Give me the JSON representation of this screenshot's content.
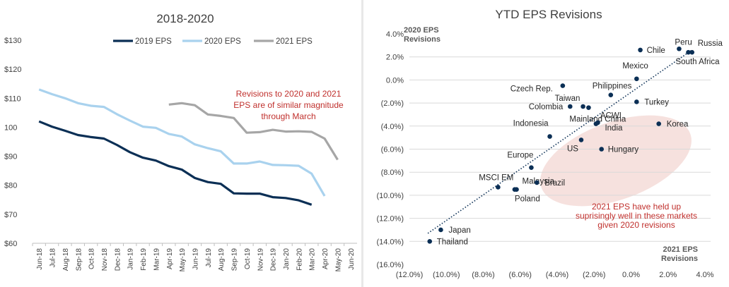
{
  "colors": {
    "eps2019": "#0b2f55",
    "eps2020": "#a9d2ee",
    "eps2021": "#a6a6a6",
    "points": "#0b2f55",
    "annotation": "#c0302d",
    "axisText": "#404040",
    "grid": "#d9d9d9",
    "ellipse": "#f4d9d6"
  },
  "chart_data": [
    {
      "type": "line",
      "title": "2018-2020",
      "xlabel": "",
      "ylabel": "",
      "ylim": [
        60,
        130
      ],
      "y_ticks": [
        60,
        70,
        80,
        90,
        100,
        110,
        120,
        130
      ],
      "y_tick_labels": [
        "$60",
        "$70",
        "$80",
        "$90",
        "100",
        "$110",
        "$120",
        "$130"
      ],
      "grid": false,
      "legend_position": "top",
      "categories": [
        "Jun-18",
        "Jul-18",
        "Aug-18",
        "Sep-18",
        "Oct-18",
        "Nov-18",
        "Dec-18",
        "Jan-19",
        "Feb-19",
        "Mar-19",
        "Apr-19",
        "May-19",
        "Jun-19",
        "Jul-19",
        "Aug-19",
        "Sep-19",
        "Oct-19",
        "Nov-19",
        "Dec-19",
        "Jan-20",
        "Feb-20",
        "Mar-20",
        "Apr-20",
        "May-20",
        "Jun-20"
      ],
      "series": [
        {
          "name": "2019 EPS",
          "values": [
            102,
            100.2,
            98.8,
            97.3,
            96.6,
            96.1,
            93.9,
            91.4,
            89.5,
            88.5,
            86.6,
            85.4,
            82.5,
            81.1,
            80.5,
            77.2,
            77.1,
            77.1,
            75.9,
            75.6,
            74.8,
            73.3,
            null,
            null,
            null
          ]
        },
        {
          "name": "2020 EPS",
          "values": [
            113,
            111.4,
            110,
            108.3,
            107.4,
            107,
            104.5,
            102.3,
            100.2,
            99.8,
            97.7,
            96.8,
            94.1,
            92.8,
            91.7,
            87.5,
            87.5,
            88.2,
            87,
            86.9,
            86.7,
            84,
            76.3,
            null,
            null
          ]
        },
        {
          "name": "2021 EPS",
          "values": [
            null,
            null,
            null,
            null,
            null,
            null,
            null,
            null,
            null,
            null,
            107.8,
            108.3,
            107.6,
            104.4,
            103.9,
            103.2,
            98.1,
            98.3,
            99.1,
            98.5,
            98.6,
            98.4,
            96.1,
            88.8,
            null
          ]
        }
      ],
      "annotations": [
        "Revisions to 2020 and 2021",
        "EPS are of similar magnitude",
        "through March"
      ]
    },
    {
      "type": "scatter",
      "title": "YTD EPS Revisions",
      "xlabel": "2021 EPS Revisions",
      "ylabel": "2020 EPS Revisions",
      "xlim": [
        -12,
        4
      ],
      "ylim": [
        -16,
        4
      ],
      "x_ticks": [
        -12,
        -10,
        -8,
        -6,
        -4,
        -2,
        0,
        2,
        4
      ],
      "x_tick_labels": [
        "(12.0%)",
        "(10.0%)",
        "(8.0%)",
        "(6.0%)",
        "(4.0%)",
        "(2.0%)",
        "0.0%",
        "2.0%",
        "4.0%"
      ],
      "y_ticks": [
        4,
        2,
        0,
        -2,
        -4,
        -6,
        -8,
        -10,
        -12,
        -14,
        -16
      ],
      "y_tick_labels": [
        "4.0%",
        "2.0%",
        "0.0%",
        "(2.0%)",
        "(4.0%)",
        "(6.0%)",
        "(8.0%)",
        "(10.0%)",
        "(12.0%)",
        "(14.0%)",
        "(16.0%)"
      ],
      "trendline": "dotted linear fit",
      "points": [
        {
          "label": "Peru",
          "x": 2.6,
          "y": 2.7
        },
        {
          "label": "Russia",
          "x": 3.3,
          "y": 2.4
        },
        {
          "label": "Chile",
          "x": 0.5,
          "y": 2.6
        },
        {
          "label": "South Africa",
          "x": 3.1,
          "y": 2.4
        },
        {
          "label": "Mexico",
          "x": 0.3,
          "y": 0.1
        },
        {
          "label": "Philippines",
          "x": -1.1,
          "y": -1.3
        },
        {
          "label": "Turkey",
          "x": 0.3,
          "y": -1.9
        },
        {
          "label": "Czech Rep.",
          "x": -3.7,
          "y": -0.5
        },
        {
          "label": "Taiwan",
          "x": -2.6,
          "y": -2.3
        },
        {
          "label": "Colombia",
          "x": -3.3,
          "y": -2.3
        },
        {
          "label": "Mainland China",
          "x": -2.3,
          "y": -2.4
        },
        {
          "label": "Korea",
          "x": 1.5,
          "y": -3.8
        },
        {
          "label": "India",
          "x": -1.8,
          "y": -3.7
        },
        {
          "label": "Indonesia",
          "x": -4.4,
          "y": -4.9
        },
        {
          "label": "ACWI",
          "x": -1.9,
          "y": -3.8
        },
        {
          "label": "US",
          "x": -2.7,
          "y": -5.2
        },
        {
          "label": "Hungary",
          "x": -1.6,
          "y": -6.0
        },
        {
          "label": "Europe",
          "x": -5.4,
          "y": -7.6
        },
        {
          "label": "MSCI EM",
          "x": -7.2,
          "y": -9.3
        },
        {
          "label": "Malaysia",
          "x": -6.2,
          "y": -9.5
        },
        {
          "label": "Brazil",
          "x": -5.1,
          "y": -8.9
        },
        {
          "label": "Poland",
          "x": -6.3,
          "y": -9.5
        },
        {
          "label": "Japan",
          "x": -10.3,
          "y": -13.0
        },
        {
          "label": "Thailand",
          "x": -10.9,
          "y": -14.0
        }
      ],
      "annotations": [
        "2021 EPS have held up",
        "suprisingly well in these markets",
        "given 2020 revisions"
      ]
    }
  ],
  "ui": {
    "left_title": "2018-2020",
    "right_title": "YTD EPS Revisions",
    "y_axis_title_line1": "2020 EPS",
    "y_axis_title_line2": "Revisions",
    "x_axis_title_line1": "2021 EPS",
    "x_axis_title_line2": "Revisions"
  }
}
